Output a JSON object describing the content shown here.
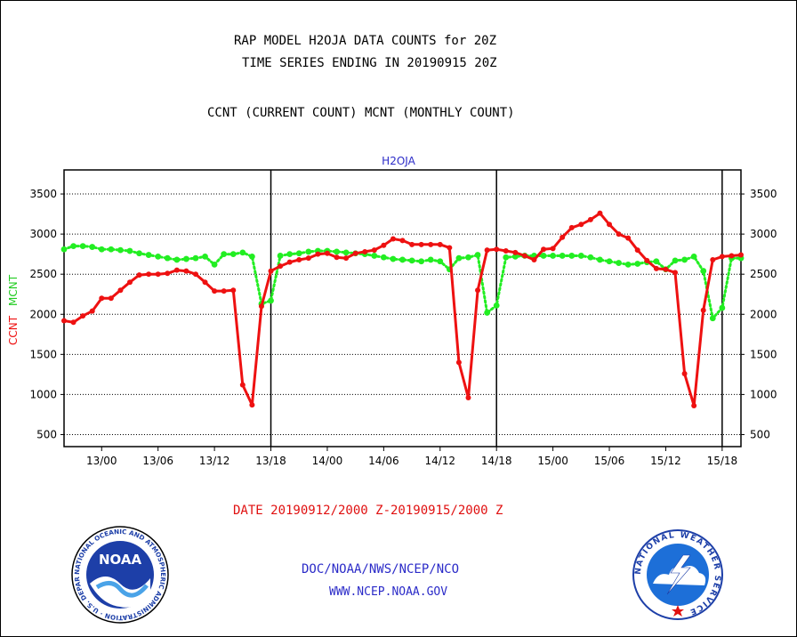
{
  "header": {
    "title1": "RAP MODEL H2OJA DATA COUNTS for 20Z",
    "title2": "TIME SERIES ENDING IN 20190915 20Z",
    "subtitle": "CCNT (CURRENT COUNT) MCNT (MONTHLY COUNT)"
  },
  "footer": {
    "date_range": "DATE 20190912/2000 Z-20190915/2000 Z",
    "org": "DOC/NOAA/NWS/NCEP/NCO",
    "url": "WWW.NCEP.NOAA.GOV",
    "noaa_logo_text": "NOAA",
    "noaa_ring_text": "NATIONAL OCEANIC AND ATMOSPHERIC ADMINISTRATION · U.S. DEPARTMENT OF COMMERCE",
    "nws_ring_text": "NATIONAL WEATHER SERVICE"
  },
  "colors": {
    "ccnt": "#ee1111",
    "mcnt": "#22ee22",
    "axis": "#000000",
    "title_blue": "#2b2bc8"
  },
  "chart_data": {
    "type": "line",
    "title": "H2OJA",
    "ylabel_left": [
      "CCNT",
      "MCNT"
    ],
    "ylim": [
      350,
      3800
    ],
    "yticks": [
      500,
      1000,
      1500,
      2000,
      2500,
      3000,
      3500
    ],
    "x_unit": "hour index from 20190912/2000 Z",
    "xlim": [
      0,
      72
    ],
    "xtick_labels": [
      {
        "x": 4,
        "label": "13/00"
      },
      {
        "x": 10,
        "label": "13/06"
      },
      {
        "x": 16,
        "label": "13/12"
      },
      {
        "x": 22,
        "label": "13/18"
      },
      {
        "x": 28,
        "label": "14/00"
      },
      {
        "x": 34,
        "label": "14/06"
      },
      {
        "x": 40,
        "label": "14/12"
      },
      {
        "x": 46,
        "label": "14/18"
      },
      {
        "x": 52,
        "label": "15/00"
      },
      {
        "x": 58,
        "label": "15/06"
      },
      {
        "x": 64,
        "label": "15/12"
      },
      {
        "x": 70,
        "label": "15/18"
      }
    ],
    "day_dividers": [
      22,
      46,
      70
    ],
    "grid": true,
    "series": [
      {
        "name": "CCNT",
        "color": "#ee1111",
        "values": [
          1920,
          1900,
          1980,
          2040,
          2200,
          2200,
          2300,
          2400,
          2490,
          2500,
          2500,
          2510,
          2550,
          2540,
          2500,
          2400,
          2290,
          2290,
          2300,
          1120,
          870,
          2100,
          2540,
          2600,
          2650,
          2680,
          2700,
          2750,
          2760,
          2710,
          2700,
          2760,
          2780,
          2800,
          2860,
          2940,
          2920,
          2870,
          2870,
          2870,
          2870,
          2830,
          1400,
          960,
          2300,
          2800,
          2810,
          2790,
          2770,
          2730,
          2680,
          2810,
          2820,
          2960,
          3080,
          3120,
          3180,
          3260,
          3120,
          3000,
          2950,
          2800,
          2670,
          2570,
          2560,
          2520,
          1260,
          860,
          2050,
          2680,
          2720,
          2730,
          2740
        ]
      },
      {
        "name": "MCNT",
        "color": "#22ee22",
        "values": [
          2810,
          2850,
          2850,
          2840,
          2810,
          2810,
          2800,
          2790,
          2760,
          2740,
          2720,
          2700,
          2680,
          2690,
          2700,
          2720,
          2620,
          2750,
          2750,
          2770,
          2720,
          2130,
          2170,
          2730,
          2750,
          2760,
          2780,
          2790,
          2790,
          2780,
          2770,
          2760,
          2750,
          2730,
          2710,
          2690,
          2680,
          2670,
          2660,
          2680,
          2660,
          2560,
          2700,
          2710,
          2740,
          2020,
          2110,
          2710,
          2720,
          2730,
          2730,
          2730,
          2730,
          2730,
          2730,
          2730,
          2710,
          2680,
          2660,
          2640,
          2620,
          2630,
          2650,
          2660,
          2560,
          2670,
          2680,
          2720,
          2540,
          1950,
          2080,
          2700,
          2700
        ]
      }
    ]
  }
}
